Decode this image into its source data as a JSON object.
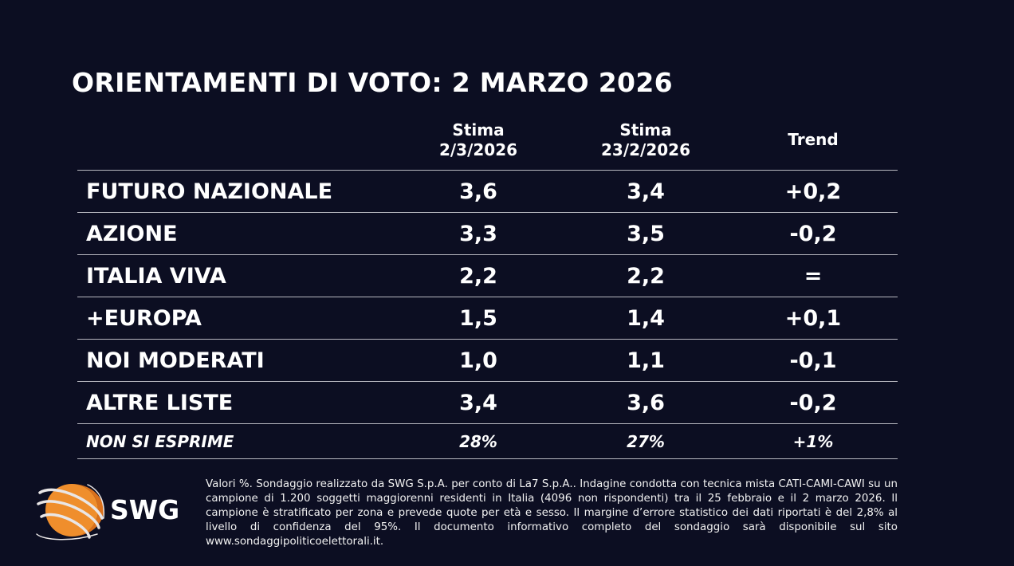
{
  "title": "ORIENTAMENTI DI VOTO: 2 MARZO 2026",
  "columns": [
    {
      "line1": "Stima",
      "line2": "2/3/2026"
    },
    {
      "line1": "Stima",
      "line2": "23/2/2026"
    },
    {
      "line1": "Trend",
      "line2": ""
    }
  ],
  "rows": [
    {
      "party": "FUTURO NAZIONALE",
      "current": "3,6",
      "previous": "3,4",
      "trend": "+0,2"
    },
    {
      "party": "AZIONE",
      "current": "3,3",
      "previous": "3,5",
      "trend": "-0,2"
    },
    {
      "party": "ITALIA VIVA",
      "current": "2,2",
      "previous": "2,2",
      "trend": "="
    },
    {
      "party": "+EUROPA",
      "current": "1,5",
      "previous": "1,4",
      "trend": "+0,1"
    },
    {
      "party": "NOI MODERATI",
      "current": "1,0",
      "previous": "1,1",
      "trend": "-0,1"
    },
    {
      "party": "ALTRE LISTE",
      "current": "3,4",
      "previous": "3,6",
      "trend": "-0,2"
    },
    {
      "party": "NON SI ESPRIME",
      "current": "28%",
      "previous": "27%",
      "trend": "+1%"
    }
  ],
  "footnote": "Valori %. Sondaggio realizzato da SWG S.p.A. per conto di La7 S.p.A.. Indagine condotta con tecnica mista CATI-CAMI-CAWI su un campione di 1.200 soggetti maggiorenni residenti in Italia (4096 non rispondenti) tra il 25 febbraio e il 2 marzo 2026. Il campione è stratificato per zona e prevede quote per età e sesso. Il margine d’errore statistico dei dati riportati è del 2,8% al livello di confidenza del 95%. Il documento informativo completo del sondaggio sarà disponibile sul sito www.sondaggipoliticoelettorali.it.",
  "logo": {
    "text": "SWG",
    "accent": "#f0922e",
    "background": "#0c0e22"
  }
}
